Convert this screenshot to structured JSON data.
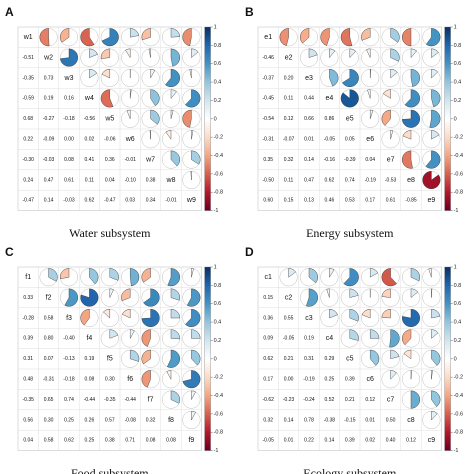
{
  "chart_data": [
    {
      "type": "corrplot",
      "label": "A",
      "title": "Water subsystem",
      "variables": [
        "w1",
        "w2",
        "w3",
        "w4",
        "w5",
        "w6",
        "w7",
        "w8",
        "w9"
      ],
      "values": [
        [
          -0.51
        ],
        [
          -0.35,
          0.73
        ],
        [
          -0.59,
          0.19,
          0.16
        ],
        [
          0.68,
          -0.27,
          -0.18,
          -0.56
        ],
        [
          0.22,
          -0.09,
          0.0,
          0.02,
          -0.06
        ],
        [
          -0.3,
          -0.03,
          0.08,
          0.41,
          0.36,
          -0.01
        ],
        [
          0.24,
          0.47,
          0.61,
          0.11,
          0.04,
          -0.1,
          0.38
        ],
        [
          -0.47,
          0.14,
          -0.03,
          0.62,
          -0.47,
          0.03,
          0.34,
          -0.01
        ]
      ],
      "value_labels": [
        [
          "-0.51"
        ],
        [
          "-0.35",
          "0.73"
        ],
        [
          "-0.59",
          "0.19",
          "0.16"
        ],
        [
          "0.68",
          "-0.27",
          "-0.18",
          "-0.56"
        ],
        [
          "0.22",
          "-0.09",
          "0.00",
          "0.02",
          "-0.06"
        ],
        [
          "-0.30",
          "-0.03",
          "0.08",
          "0.41",
          "0.36",
          "-0.01"
        ],
        [
          "0.24",
          "0.47",
          "0.61",
          "0.11",
          "0.04",
          "-0.10",
          "0.38"
        ],
        [
          "-0.47",
          "0.14",
          "-0.03",
          "0.62",
          "-0.47",
          "0.03",
          "0.34",
          "-0.01"
        ]
      ],
      "clim": [
        -1,
        1
      ],
      "colorbar_ticks": [
        1,
        0.8,
        0.6,
        0.4,
        0.2,
        0,
        -0.2,
        -0.4,
        -0.6,
        -0.8,
        -1
      ],
      "colormap": [
        "#67001f",
        "#b2182b",
        "#d6604d",
        "#f4a582",
        "#fddbc7",
        "#ffffff",
        "#d1e5f0",
        "#92c5de",
        "#4393c3",
        "#2166ac",
        "#053061"
      ]
    },
    {
      "type": "corrplot",
      "label": "B",
      "title": "Energy subsystem",
      "variables": [
        "e1",
        "e2",
        "e3",
        "e4",
        "e5",
        "e6",
        "e7",
        "e8",
        "e9"
      ],
      "values": [
        [
          -0.46
        ],
        [
          -0.37,
          0.2
        ],
        [
          -0.45,
          0.11,
          0.44
        ],
        [
          -0.54,
          0.12,
          0.66,
          0.86
        ],
        [
          -0.31,
          -0.07,
          0.01,
          -0.05,
          0.05
        ],
        [
          0.35,
          0.32,
          0.14,
          -0.16,
          -0.39,
          0.04
        ],
        [
          -0.5,
          0.11,
          0.47,
          0.62,
          0.74,
          -0.19,
          -0.53
        ],
        [
          0.6,
          0.15,
          0.13,
          0.46,
          0.53,
          0.17,
          0.61,
          -0.85
        ]
      ],
      "value_labels": [
        [
          "-0.46"
        ],
        [
          "-0.37",
          "0.20"
        ],
        [
          "-0.45",
          "0.11",
          "0.44"
        ],
        [
          "-0.54",
          "0.12",
          "0.66",
          "0.86"
        ],
        [
          "-0.31",
          "-0.07",
          "0.01",
          "-0.05",
          "0.05"
        ],
        [
          "0.35",
          "0.32",
          "0.14",
          "-0.16",
          "-0.39",
          "0.04"
        ],
        [
          "-0.50",
          "0.11",
          "0.47",
          "0.62",
          "0.74",
          "-0.19",
          "-0.53"
        ],
        [
          "0.60",
          "0.15",
          "0.13",
          "0.46",
          "0.53",
          "0.17",
          "0.61",
          "-0.85"
        ]
      ],
      "clim": [
        -1,
        1
      ],
      "colorbar_ticks": [
        1,
        0.8,
        0.6,
        0.4,
        0.2,
        0,
        -0.2,
        -0.4,
        -0.6,
        -0.8,
        -1
      ],
      "colormap": [
        "#67001f",
        "#b2182b",
        "#d6604d",
        "#f4a582",
        "#fddbc7",
        "#ffffff",
        "#d1e5f0",
        "#92c5de",
        "#4393c3",
        "#2166ac",
        "#053061"
      ]
    },
    {
      "type": "corrplot",
      "label": "C",
      "title": "Food subsystem",
      "variables": [
        "f1",
        "f2",
        "f3",
        "f4",
        "f5",
        "f6",
        "f7",
        "f8",
        "f9"
      ],
      "values": [
        [
          0.33
        ],
        [
          -0.28,
          0.58
        ],
        [
          0.39,
          0.8,
          -0.4
        ],
        [
          0.31,
          0.07,
          -0.13,
          0.19
        ],
        [
          0.48,
          -0.31,
          -0.18,
          0.08,
          0.3
        ],
        [
          -0.35,
          0.65,
          0.74,
          -0.44,
          -0.35,
          -0.44
        ],
        [
          0.56,
          0.3,
          0.25,
          0.26,
          0.57,
          -0.08,
          0.32
        ],
        [
          0.04,
          0.58,
          0.62,
          0.25,
          0.38,
          0.71,
          0.08,
          0.08
        ]
      ],
      "value_labels": [
        [
          "0.33"
        ],
        [
          "-0.28",
          "0.58"
        ],
        [
          "0.39",
          "0.80",
          "-0.40"
        ],
        [
          "0.31",
          "0.07",
          "-0.13",
          "0.19"
        ],
        [
          "0.48",
          "-0.31",
          "-0.18",
          "0.08",
          "0.30"
        ],
        [
          "-0.35",
          "0.65",
          "0.74",
          "-0.44",
          "-0.35",
          "-0.44"
        ],
        [
          "0.56",
          "0.30",
          "0.25",
          "0.26",
          "0.57",
          "-0.08",
          "0.32"
        ],
        [
          "0.04",
          "0.58",
          "0.62",
          "0.25",
          "0.38",
          "0.71",
          "0.08",
          "0.08"
        ]
      ],
      "clim": [
        -1,
        1
      ],
      "colorbar_ticks": [
        1,
        0.8,
        0.6,
        0.4,
        0.2,
        0,
        -0.2,
        -0.4,
        -0.6,
        -0.8,
        -1
      ],
      "colormap": [
        "#67001f",
        "#b2182b",
        "#d6604d",
        "#f4a582",
        "#fddbc7",
        "#ffffff",
        "#d1e5f0",
        "#92c5de",
        "#4393c3",
        "#2166ac",
        "#053061"
      ]
    },
    {
      "type": "corrplot",
      "label": "D",
      "title": "Ecology subsystem",
      "variables": [
        "c1",
        "c2",
        "c3",
        "c4",
        "c5",
        "c6",
        "c7",
        "c8",
        "c9"
      ],
      "values": [
        [
          0.15
        ],
        [
          0.36,
          0.55
        ],
        [
          0.09,
          -0.05,
          0.19
        ],
        [
          0.62,
          0.21,
          0.31,
          0.29
        ],
        [
          0.17,
          0.0,
          -0.19,
          0.25,
          0.39
        ],
        [
          -0.62,
          -0.23,
          -0.24,
          0.52,
          0.21,
          0.12
        ],
        [
          0.32,
          0.14,
          0.78,
          -0.38,
          -0.15,
          0.01,
          0.5
        ],
        [
          -0.05,
          0.01,
          0.22,
          0.14,
          0.39,
          0.02,
          0.4,
          0.12
        ]
      ],
      "value_labels": [
        [
          "0.15"
        ],
        [
          "0.36",
          "0.55"
        ],
        [
          "0.09",
          "-0.05",
          "0.19"
        ],
        [
          "0.62",
          "0.21",
          "0.31",
          "0.29"
        ],
        [
          "0.17",
          "0.00",
          "-0.19",
          "0.25",
          "0.39"
        ],
        [
          "-0.62",
          "-0.23",
          "-0.24",
          "0.52",
          "0.21",
          "0.12"
        ],
        [
          "0.32",
          "0.14",
          "0.78",
          "-0.38",
          "-0.15",
          "0.01",
          "0.50"
        ],
        [
          "-0.05",
          "0.01",
          "0.22",
          "0.14",
          "0.39",
          "0.02",
          "0.40",
          "0.12"
        ]
      ],
      "clim": [
        -1,
        1
      ],
      "colorbar_ticks": [
        1,
        0.8,
        0.6,
        0.4,
        0.2,
        0,
        -0.2,
        -0.4,
        -0.6,
        -0.8,
        -1
      ],
      "colormap": [
        "#67001f",
        "#b2182b",
        "#d6604d",
        "#f4a582",
        "#fddbc7",
        "#ffffff",
        "#d1e5f0",
        "#92c5de",
        "#4393c3",
        "#2166ac",
        "#053061"
      ]
    }
  ]
}
